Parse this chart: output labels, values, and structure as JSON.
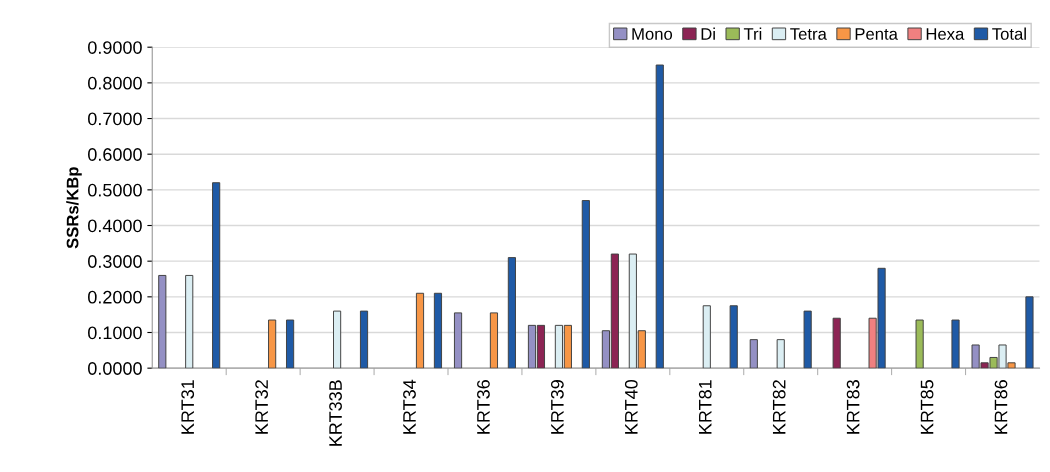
{
  "chart_data": {
    "type": "bar",
    "ylabel": "SSRs/KBp",
    "categories": [
      "KRT31",
      "KRT32",
      "KRT33B",
      "KRT34",
      "KRT36",
      "KRT39",
      "KRT40",
      "KRT81",
      "KRT82",
      "KRT83",
      "KRT85",
      "KRT86"
    ],
    "series": [
      {
        "name": "Mono",
        "color": "#9490c4",
        "values": [
          0.26,
          null,
          null,
          null,
          0.155,
          0.12,
          0.105,
          null,
          0.08,
          null,
          null,
          0.065
        ]
      },
      {
        "name": "Di",
        "color": "#8c2454",
        "values": [
          null,
          null,
          null,
          null,
          null,
          0.12,
          0.32,
          null,
          null,
          0.14,
          null,
          0.015
        ]
      },
      {
        "name": "Tri",
        "color": "#9bbb59",
        "values": [
          null,
          null,
          null,
          null,
          null,
          null,
          null,
          null,
          null,
          null,
          0.135,
          0.03
        ]
      },
      {
        "name": "Tetra",
        "color": "#dbeef3",
        "values": [
          0.26,
          null,
          0.16,
          null,
          null,
          0.12,
          0.32,
          0.175,
          0.08,
          null,
          null,
          0.065
        ]
      },
      {
        "name": "Penta",
        "color": "#f79646",
        "values": [
          null,
          0.135,
          null,
          0.21,
          0.155,
          0.12,
          0.105,
          null,
          null,
          null,
          null,
          0.015
        ]
      },
      {
        "name": "Hexa",
        "color": "#f08080",
        "values": [
          null,
          null,
          null,
          null,
          null,
          null,
          null,
          null,
          null,
          0.14,
          null,
          null
        ]
      },
      {
        "name": "Total",
        "color": "#1f5aa6",
        "values": [
          0.52,
          0.135,
          0.16,
          0.21,
          0.31,
          0.47,
          0.85,
          0.175,
          0.16,
          0.28,
          0.135,
          0.2
        ]
      }
    ],
    "ylim": [
      0,
      0.9
    ],
    "yticks": [
      {
        "value": 0,
        "label": "0.0000"
      },
      {
        "value": 0.1,
        "label": "0.1000"
      },
      {
        "value": 0.2,
        "label": "0.2000"
      },
      {
        "value": 0.3,
        "label": "0.3000"
      },
      {
        "value": 0.4,
        "label": "0.4000"
      },
      {
        "value": 0.5,
        "label": "0.5000"
      },
      {
        "value": 0.6,
        "label": "0.6000"
      },
      {
        "value": 0.7,
        "label": "0.7000"
      },
      {
        "value": 0.8,
        "label": "0.8000"
      },
      {
        "value": 0.9,
        "label": "0.9000"
      }
    ],
    "grid": "y",
    "legend": "top right"
  }
}
